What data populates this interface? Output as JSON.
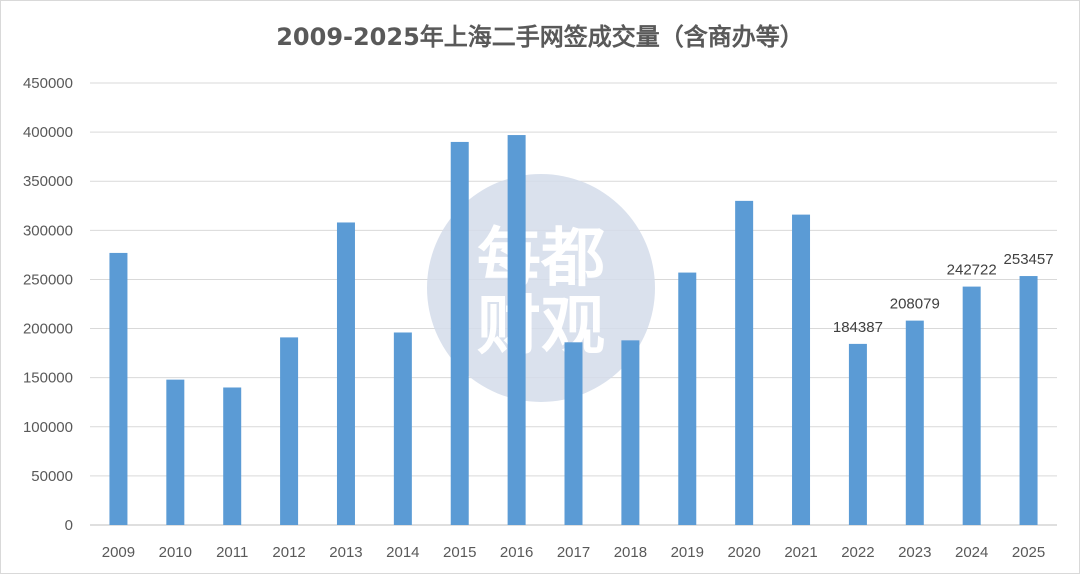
{
  "chart_data": {
    "type": "bar",
    "title": "2009-2025年上海二手网签成交量（含商办等）",
    "xlabel": "",
    "ylabel": "",
    "categories": [
      "2009",
      "2010",
      "2011",
      "2012",
      "2013",
      "2014",
      "2015",
      "2016",
      "2017",
      "2018",
      "2019",
      "2020",
      "2021",
      "2022",
      "2023",
      "2024",
      "2025"
    ],
    "values": [
      277000,
      148000,
      140000,
      191000,
      308000,
      196000,
      390000,
      397000,
      186000,
      188000,
      257000,
      330000,
      316000,
      184387,
      208079,
      242722,
      253457
    ],
    "data_labels": [
      "",
      "",
      "",
      "",
      "",
      "",
      "",
      "",
      "",
      "",
      "",
      "",
      "",
      "184387",
      "208079",
      "242722",
      "253457"
    ],
    "ylim": [
      0,
      450000
    ],
    "yticks": [
      "0",
      "50000",
      "100000",
      "150000",
      "200000",
      "250000",
      "300000",
      "350000",
      "400000",
      "450000"
    ],
    "grid": true,
    "legend": "none",
    "bar_color": "#5b9bd5",
    "watermark": {
      "text_top": "每都",
      "text_bottom": "财观",
      "color": "#d3dcea"
    }
  }
}
